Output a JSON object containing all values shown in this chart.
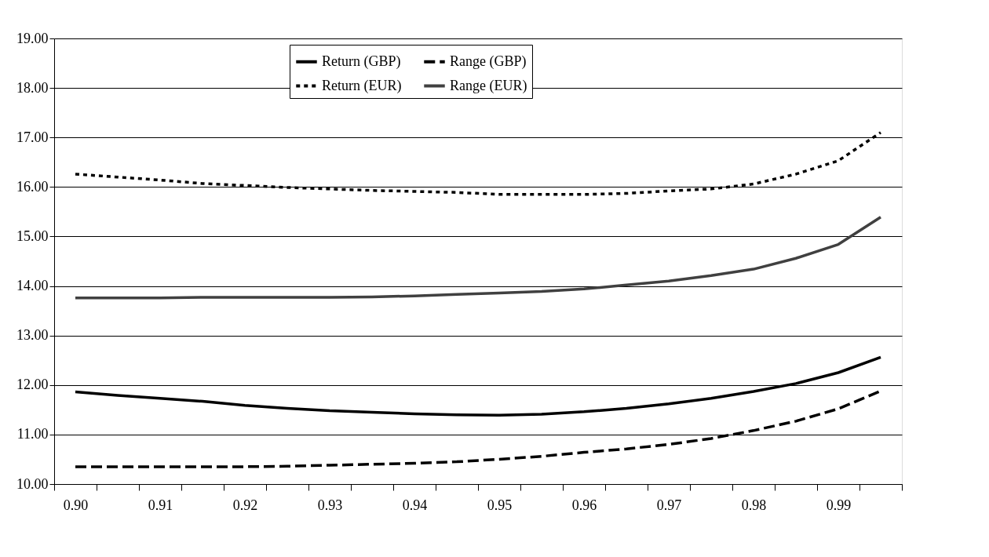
{
  "chart_data": {
    "type": "line",
    "categories": [
      "0.90",
      null,
      "0.91",
      null,
      "0.92",
      null,
      "0.93",
      null,
      "0.94",
      null,
      "0.95",
      null,
      "0.96",
      null,
      "0.97",
      null,
      "0.98",
      null,
      "0.99",
      null
    ],
    "series": [
      {
        "name": "Return (GBP)",
        "color": "#000000",
        "line_style": "solid",
        "values": [
          11.86,
          11.79,
          11.73,
          11.67,
          11.59,
          11.53,
          11.48,
          11.45,
          11.42,
          11.4,
          11.39,
          11.41,
          11.46,
          11.53,
          11.62,
          11.73,
          11.87,
          12.03,
          12.25,
          12.56
        ]
      },
      {
        "name": "Range (GBP)",
        "color": "#000000",
        "line_style": "dashed",
        "values": [
          10.35,
          10.35,
          10.35,
          10.35,
          10.35,
          10.36,
          10.38,
          10.4,
          10.42,
          10.45,
          10.5,
          10.56,
          10.64,
          10.71,
          10.8,
          10.92,
          11.08,
          11.27,
          11.52,
          11.88
        ]
      },
      {
        "name": "Return (EUR)",
        "color": "#000000",
        "line_style": "dotted",
        "values": [
          16.26,
          16.2,
          16.14,
          16.07,
          16.03,
          15.99,
          15.96,
          15.93,
          15.91,
          15.89,
          15.85,
          15.85,
          15.85,
          15.87,
          15.92,
          15.96,
          16.06,
          16.26,
          16.53,
          17.1
        ]
      },
      {
        "name": "Range (EUR)",
        "color": "#404040",
        "line_style": "solid",
        "values": [
          13.76,
          13.76,
          13.76,
          13.77,
          13.77,
          13.77,
          13.77,
          13.78,
          13.8,
          13.83,
          13.86,
          13.89,
          13.94,
          14.02,
          14.1,
          14.21,
          14.34,
          14.56,
          14.84,
          15.39
        ]
      }
    ],
    "ylim": [
      10,
      19
    ],
    "yticks": [
      {
        "value": 10,
        "label": "10.00"
      },
      {
        "value": 11,
        "label": "11.00"
      },
      {
        "value": 12,
        "label": "12.00"
      },
      {
        "value": 13,
        "label": "13.00"
      },
      {
        "value": 14,
        "label": "14.00"
      },
      {
        "value": 15,
        "label": "15.00"
      },
      {
        "value": 16,
        "label": "16.00"
      },
      {
        "value": 17,
        "label": "17.00"
      },
      {
        "value": 18,
        "label": "18.00"
      },
      {
        "value": 19,
        "label": "19.00"
      }
    ],
    "grid": "y",
    "legend": "top",
    "marker": "none"
  }
}
